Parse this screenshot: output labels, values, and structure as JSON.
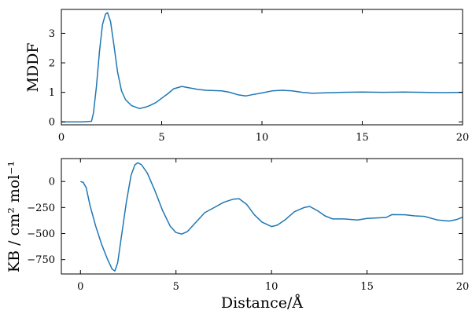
{
  "chart_data": [
    {
      "type": "line",
      "title": "",
      "xlabel": "",
      "ylabel": "MDDF",
      "xlim": [
        0,
        20
      ],
      "ylim": [
        -0.1,
        3.81
      ],
      "xticks": [
        0,
        5,
        10,
        15,
        20
      ],
      "yticks": [
        0,
        1,
        2,
        3
      ],
      "grid": false,
      "color": "#1f77b4",
      "x": [
        0,
        1.0,
        1.5,
        1.6,
        1.75,
        1.9,
        2.05,
        2.2,
        2.3,
        2.45,
        2.6,
        2.8,
        3.0,
        3.2,
        3.5,
        3.9,
        4.2,
        4.4,
        4.7,
        5.0,
        5.3,
        5.6,
        6.0,
        6.4,
        6.8,
        7.2,
        7.6,
        8.0,
        8.4,
        8.8,
        9.2,
        9.5,
        10.0,
        10.5,
        11.0,
        11.5,
        12.0,
        12.5,
        13.0,
        14.0,
        15.0,
        16.0,
        17.0,
        18.0,
        19.0,
        20.0
      ],
      "y": [
        0,
        0,
        0.02,
        0.3,
        1.2,
        2.4,
        3.3,
        3.65,
        3.7,
        3.4,
        2.7,
        1.7,
        1.05,
        0.75,
        0.55,
        0.45,
        0.5,
        0.55,
        0.65,
        0.8,
        0.95,
        1.12,
        1.2,
        1.15,
        1.1,
        1.07,
        1.06,
        1.05,
        1.0,
        0.92,
        0.88,
        0.92,
        0.98,
        1.05,
        1.07,
        1.05,
        1.0,
        0.97,
        0.98,
        1.0,
        1.01,
        1.0,
        1.01,
        1.0,
        0.99,
        1.0
      ]
    },
    {
      "type": "line",
      "title": "",
      "xlabel": "Distance/Å",
      "ylabel": "KB / cm² mol⁻¹",
      "xlim": [
        -1,
        20
      ],
      "ylim": [
        -888,
        220
      ],
      "xticks": [
        0,
        5,
        10,
        15,
        20
      ],
      "yticks": [
        0,
        -250,
        -500,
        -750
      ],
      "ytick_labels": [
        "0",
        "−250",
        "−500",
        "−750"
      ],
      "grid": false,
      "color": "#1f77b4",
      "x": [
        0,
        0.15,
        0.3,
        0.5,
        0.8,
        1.1,
        1.4,
        1.65,
        1.8,
        1.95,
        2.15,
        2.4,
        2.65,
        2.85,
        3.0,
        3.2,
        3.5,
        3.9,
        4.3,
        4.7,
        5.0,
        5.3,
        5.6,
        6.0,
        6.5,
        7.0,
        7.5,
        8.0,
        8.3,
        8.7,
        9.1,
        9.5,
        10.0,
        10.3,
        10.7,
        11.2,
        11.7,
        12.0,
        12.4,
        12.8,
        13.2,
        13.8,
        14.5,
        15.0,
        15.5,
        16.0,
        16.3,
        17.0,
        17.5,
        18.0,
        18.7,
        19.3,
        19.7,
        20.0
      ],
      "y": [
        0,
        -10,
        -60,
        -230,
        -430,
        -600,
        -740,
        -840,
        -860,
        -780,
        -520,
        -200,
        60,
        160,
        180,
        160,
        80,
        -90,
        -280,
        -430,
        -490,
        -505,
        -480,
        -400,
        -300,
        -250,
        -200,
        -170,
        -165,
        -220,
        -320,
        -390,
        -433,
        -420,
        -370,
        -290,
        -250,
        -240,
        -280,
        -330,
        -360,
        -360,
        -370,
        -355,
        -350,
        -345,
        -318,
        -320,
        -330,
        -335,
        -370,
        -380,
        -365,
        -343
      ]
    }
  ]
}
